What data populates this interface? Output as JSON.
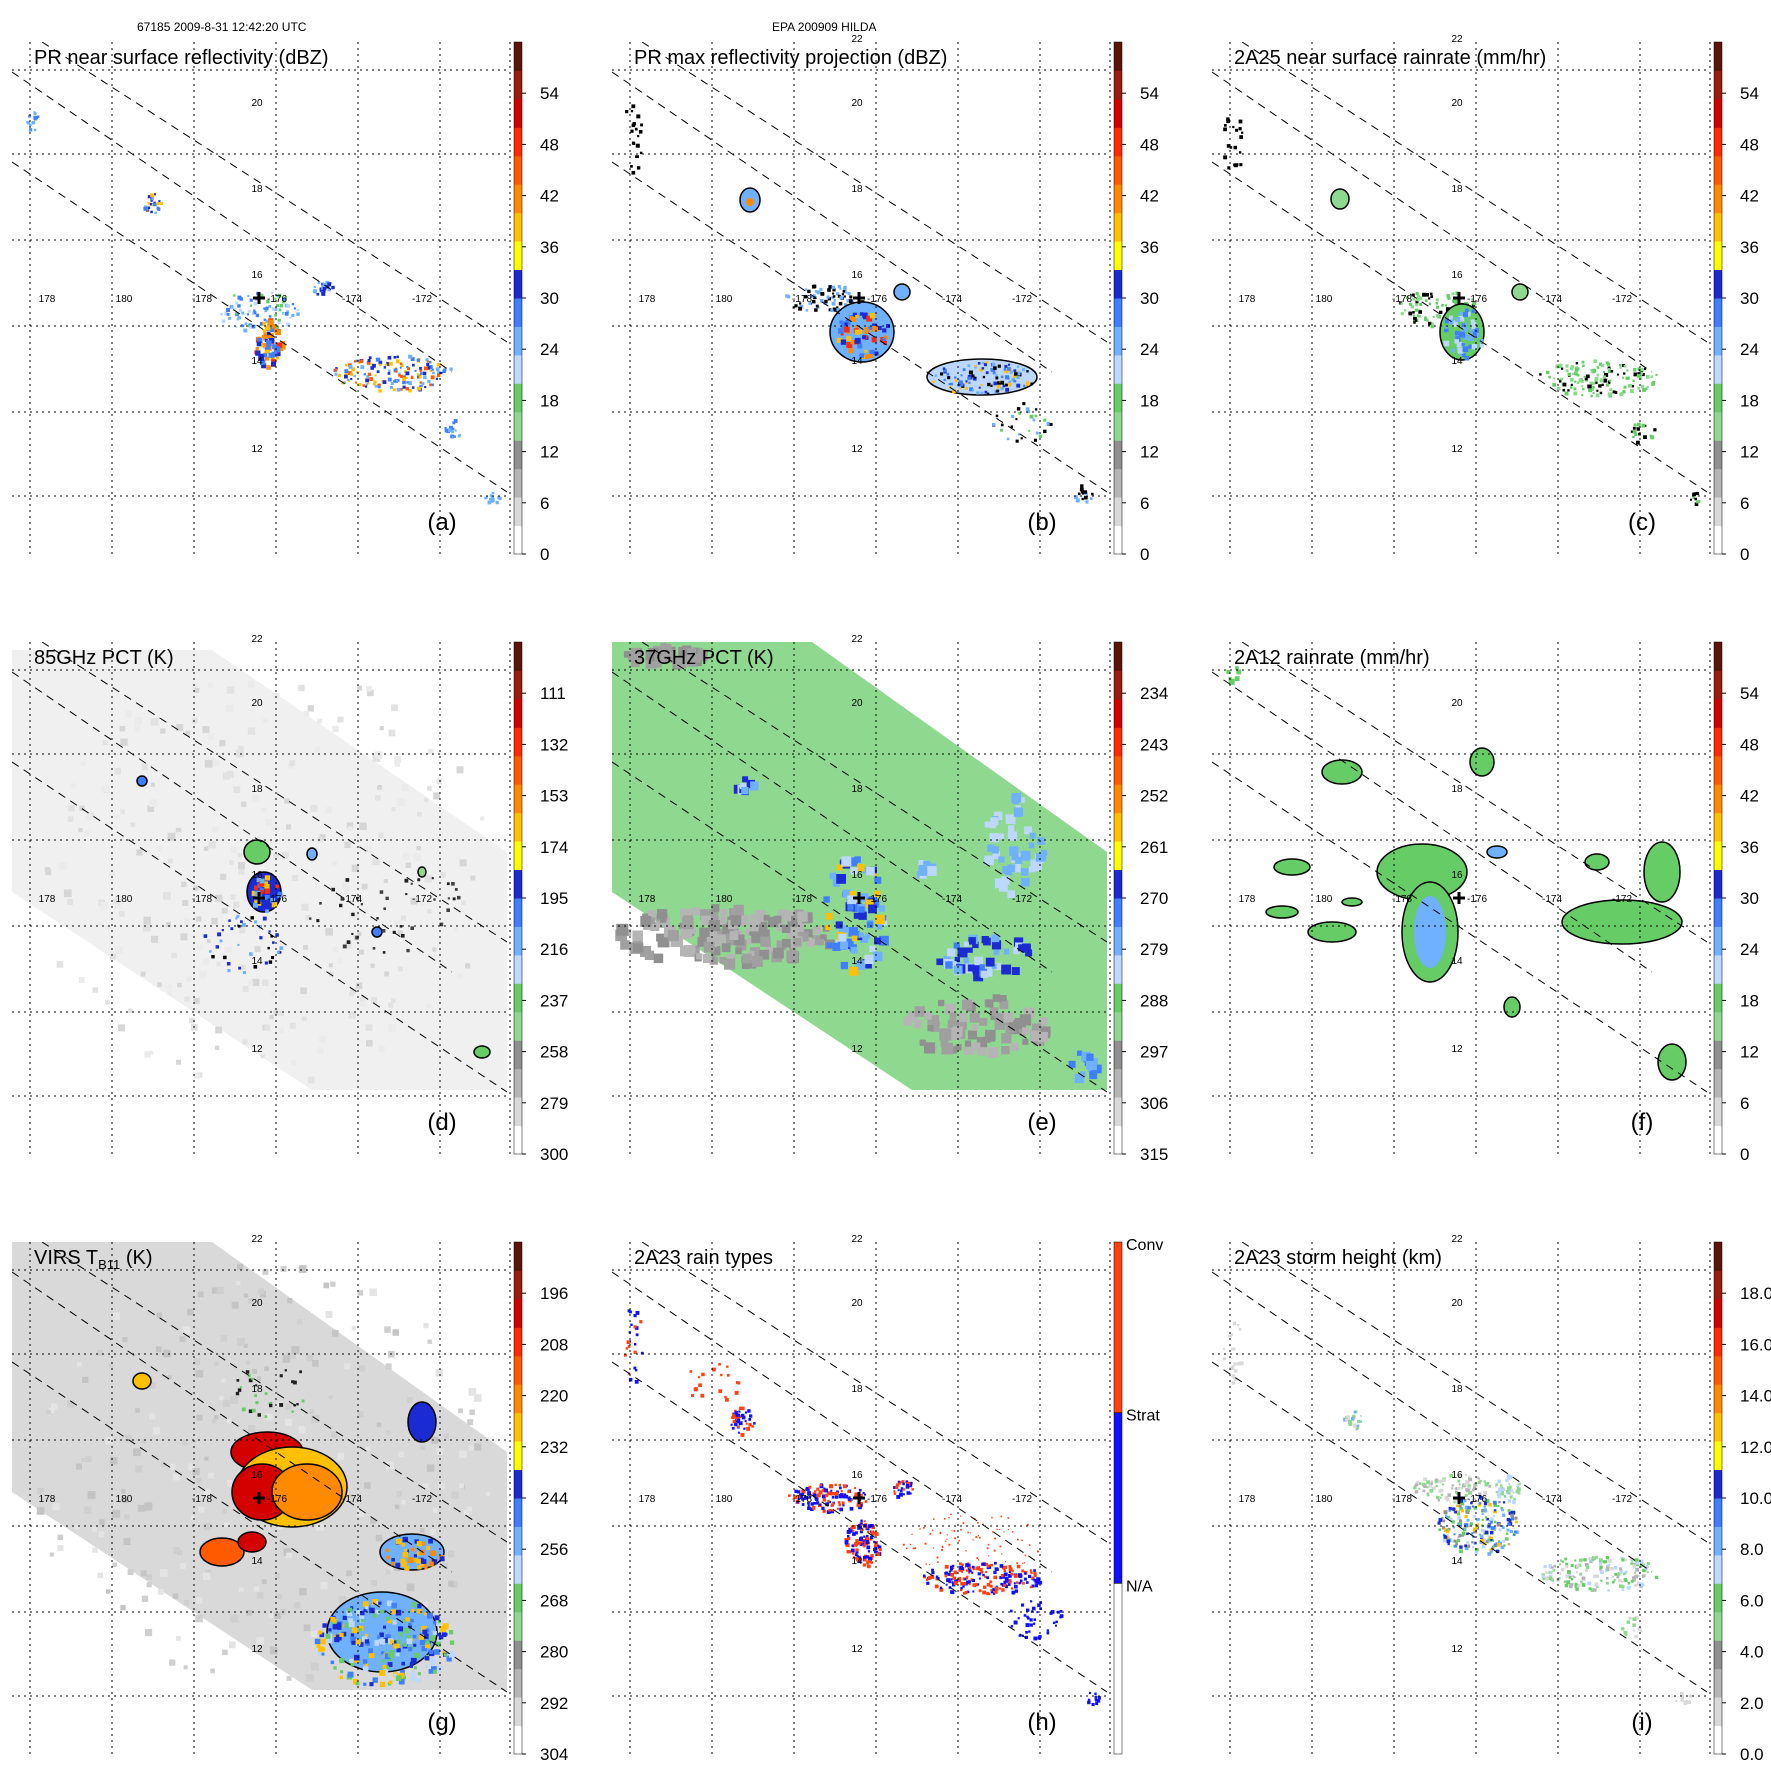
{
  "header": {
    "left": "67185 2009-8-31 12:42:20 UTC",
    "center": "EPA 200909 HILDA"
  },
  "colors": {
    "grid": "#000000",
    "scale_continuous": [
      "#ffffff",
      "#d9d9d9",
      "#b5b5b5",
      "#909090",
      "#8fd88f",
      "#66cc66",
      "#bcd8ff",
      "#6fb0ff",
      "#3f7fff",
      "#1a2bd4",
      "#ffff00",
      "#ffc000",
      "#ff8a00",
      "#ff5a00",
      "#ff2a00",
      "#d40000",
      "#9b1b10",
      "#5a1508"
    ],
    "raintype": [
      "#ffffff",
      "#1010ff",
      "#ff4010"
    ]
  },
  "chart_data": [
    {
      "id": "a",
      "type": "heatmap",
      "title": "PR near surface reflectivity (dBZ)",
      "panel_label": "(a)",
      "lon_ticks": [
        "178",
        "180",
        "-178",
        "-176",
        "-174",
        "-172"
      ],
      "lat_ticks": [
        "12",
        "14",
        "16",
        "18",
        "20"
      ],
      "colorbar": {
        "range": [
          0,
          60
        ],
        "tick_labels": [
          "0",
          "6",
          "12",
          "18",
          "24",
          "30",
          "36",
          "42",
          "48",
          "54"
        ]
      }
    },
    {
      "id": "b",
      "type": "heatmap",
      "title": "PR max reflectivity projection (dBZ)",
      "panel_label": "(b)",
      "lon_ticks": [
        "178",
        "180",
        "-178",
        "-176",
        "-174",
        "-172"
      ],
      "lat_ticks": [
        "12",
        "14",
        "16",
        "18",
        "20",
        "22"
      ],
      "colorbar": {
        "range": [
          0,
          60
        ],
        "tick_labels": [
          "0",
          "6",
          "12",
          "18",
          "24",
          "30",
          "36",
          "42",
          "48",
          "54"
        ]
      }
    },
    {
      "id": "c",
      "type": "heatmap",
      "title": "2A25 near surface rainrate (mm/hr)",
      "panel_label": "(c)",
      "lon_ticks": [
        "178",
        "180",
        "-178",
        "-176",
        "-174",
        "-172"
      ],
      "lat_ticks": [
        "12",
        "14",
        "16",
        "18",
        "20",
        "22"
      ],
      "colorbar": {
        "range": [
          0,
          60
        ],
        "tick_labels": [
          "0",
          "6",
          "12",
          "18",
          "24",
          "30",
          "36",
          "42",
          "48",
          "54"
        ]
      }
    },
    {
      "id": "d",
      "type": "heatmap",
      "title": "85GHz PCT (K)",
      "panel_label": "(d)",
      "lon_ticks": [
        "178",
        "180",
        "-178",
        "-176",
        "-174",
        "-172"
      ],
      "lat_ticks": [
        "12",
        "14",
        "16",
        "18",
        "20",
        "22"
      ],
      "colorbar": {
        "range": [
          300,
          90
        ],
        "tick_labels": [
          "300",
          "279",
          "258",
          "237",
          "216",
          "195",
          "174",
          "153",
          "132",
          "111"
        ]
      }
    },
    {
      "id": "e",
      "type": "heatmap",
      "title": "37GHz PCT (K)",
      "panel_label": "(e)",
      "lon_ticks": [
        "178",
        "180",
        "-178",
        "-176",
        "-174",
        "-172"
      ],
      "lat_ticks": [
        "12",
        "14",
        "16",
        "18",
        "20",
        "22"
      ],
      "colorbar": {
        "range": [
          315,
          225
        ],
        "tick_labels": [
          "315",
          "306",
          "297",
          "288",
          "279",
          "270",
          "261",
          "252",
          "243",
          "234"
        ]
      }
    },
    {
      "id": "f",
      "type": "heatmap",
      "title": "2A12 rainrate (mm/hr)",
      "panel_label": "(f)",
      "lon_ticks": [
        "178",
        "180",
        "-178",
        "-176",
        "-174",
        "-172"
      ],
      "lat_ticks": [
        "12",
        "14",
        "16",
        "18",
        "20"
      ],
      "colorbar": {
        "range": [
          0,
          60
        ],
        "tick_labels": [
          "0",
          "6",
          "12",
          "18",
          "24",
          "30",
          "36",
          "42",
          "48",
          "54"
        ]
      }
    },
    {
      "id": "g",
      "type": "heatmap",
      "title": "VIRS T",
      "title_sub": "B11",
      "title_tail": " (K)",
      "panel_label": "(g)",
      "lon_ticks": [
        "178",
        "180",
        "-178",
        "-176",
        "-174",
        "-172"
      ],
      "lat_ticks": [
        "12",
        "14",
        "16",
        "18",
        "20",
        "22"
      ],
      "colorbar": {
        "range": [
          304,
          184
        ],
        "tick_labels": [
          "304",
          "292",
          "280",
          "268",
          "256",
          "244",
          "232",
          "220",
          "208",
          "196"
        ]
      }
    },
    {
      "id": "h",
      "type": "heatmap",
      "title": "2A23 rain types",
      "panel_label": "(h)",
      "lon_ticks": [
        "178",
        "180",
        "-178",
        "-176",
        "-174",
        "-172"
      ],
      "lat_ticks": [
        "12",
        "14",
        "16",
        "18",
        "20",
        "22"
      ],
      "colorbar": {
        "categories": [
          "N/A",
          "Strat",
          "Conv"
        ]
      }
    },
    {
      "id": "i",
      "type": "heatmap",
      "title": "2A23 storm height (km)",
      "panel_label": "(i)",
      "lon_ticks": [
        "178",
        "180",
        "-178",
        "-176",
        "-174",
        "-172"
      ],
      "lat_ticks": [
        "12",
        "14",
        "16",
        "18",
        "20",
        "22"
      ],
      "colorbar": {
        "range": [
          0,
          20
        ],
        "tick_labels": [
          "0.0",
          "2.0",
          "4.0",
          "6.0",
          "8.0",
          "10.0",
          "12.0",
          "14.0",
          "16.0",
          "18.0"
        ]
      }
    }
  ]
}
